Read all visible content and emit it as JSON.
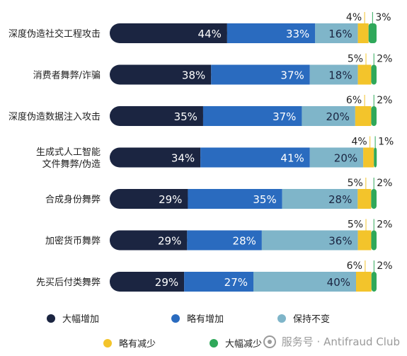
{
  "colors": {
    "sig_increase": "#1b2541",
    "slight_increase": "#2a6bbf",
    "unchanged": "#7fb5c9",
    "slight_decrease": "#f3c42b",
    "sig_decrease": "#2fa85a"
  },
  "legend": [
    {
      "label": "大幅增加",
      "color": "#1b2541"
    },
    {
      "label": "略有增加",
      "color": "#2a6bbf"
    },
    {
      "label": "保持不变",
      "color": "#7fb5c9"
    },
    {
      "label": "略有减少",
      "color": "#f3c42b"
    },
    {
      "label": "大幅减少",
      "color": "#2fa85a"
    }
  ],
  "watermark": "服务号 · Antifraud Club",
  "chart_data": {
    "type": "bar",
    "stacked": true,
    "orientation": "horizontal",
    "categories": [
      [
        "深度伪造社交工程攻击"
      ],
      [
        "消费者舞弊/诈骗"
      ],
      [
        "深度伪造数据注入攻击"
      ],
      [
        "生成式人工智能",
        "文件舞弊/伪造"
      ],
      [
        "合成身份舞弊"
      ],
      [
        "加密货币舞弊"
      ],
      [
        "先买后付类舞弊"
      ]
    ],
    "series": [
      {
        "name": "大幅增加",
        "values": [
          44,
          38,
          35,
          34,
          29,
          29,
          29
        ]
      },
      {
        "name": "略有增加",
        "values": [
          33,
          37,
          37,
          41,
          35,
          28,
          27
        ]
      },
      {
        "name": "保持不变",
        "values": [
          16,
          18,
          20,
          20,
          28,
          36,
          40
        ]
      },
      {
        "name": "略有减少",
        "values": [
          4,
          5,
          6,
          4,
          5,
          5,
          6
        ]
      },
      {
        "name": "大幅减少",
        "values": [
          3,
          2,
          2,
          1,
          2,
          2,
          2
        ]
      }
    ],
    "xlim": [
      0,
      100
    ]
  }
}
